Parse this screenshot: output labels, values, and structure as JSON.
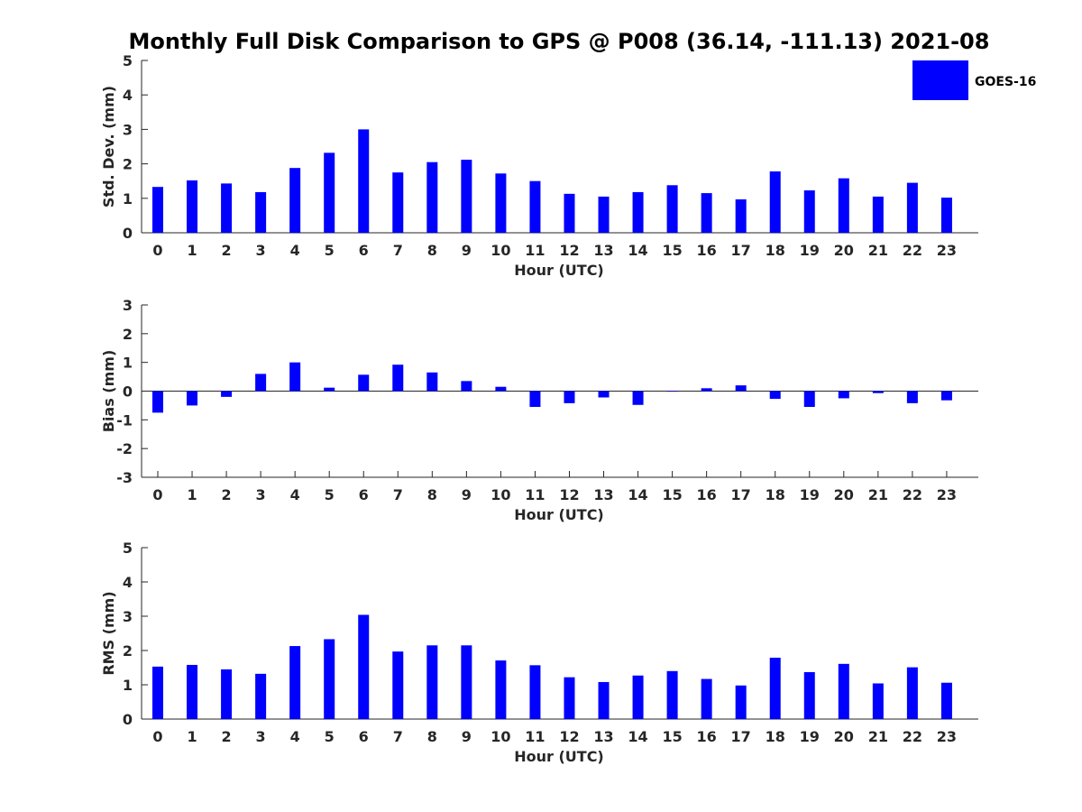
{
  "chart_data": {
    "title": "Monthly Full Disk Comparison to GPS @ P008 (36.14, -111.13) 2021-08",
    "type": "bar",
    "legend": {
      "entries": [
        "GOES-16"
      ],
      "placement": "top-right",
      "color": "#0000ff"
    },
    "panels": [
      {
        "id": "std",
        "type": "bar",
        "xlabel": "Hour (UTC)",
        "ylabel": "Std. Dev. (mm)",
        "ylim": [
          0,
          5
        ],
        "yticks": [
          "0",
          "1",
          "2",
          "3",
          "4",
          "5"
        ],
        "categories": [
          "0",
          "1",
          "2",
          "3",
          "4",
          "5",
          "6",
          "7",
          "8",
          "9",
          "10",
          "11",
          "12",
          "13",
          "14",
          "15",
          "16",
          "17",
          "18",
          "19",
          "20",
          "21",
          "22",
          "23"
        ],
        "series": [
          {
            "name": "GOES-16",
            "values": [
              1.33,
              1.52,
              1.43,
              1.18,
              1.88,
              2.32,
              3.0,
              1.75,
              2.05,
              2.12,
              1.72,
              1.5,
              1.13,
              1.05,
              1.18,
              1.38,
              1.15,
              0.97,
              1.78,
              1.23,
              1.58,
              1.05,
              1.45,
              1.02
            ]
          }
        ]
      },
      {
        "id": "bias",
        "type": "bar",
        "xlabel": "Hour (UTC)",
        "ylabel": "Bias (mm)",
        "ylim": [
          -3,
          3
        ],
        "yticks": [
          "-3",
          "-2",
          "-1",
          "0",
          "1",
          "2",
          "3"
        ],
        "categories": [
          "0",
          "1",
          "2",
          "3",
          "4",
          "5",
          "6",
          "7",
          "8",
          "9",
          "10",
          "11",
          "12",
          "13",
          "14",
          "15",
          "16",
          "17",
          "18",
          "19",
          "20",
          "21",
          "22",
          "23"
        ],
        "series": [
          {
            "name": "GOES-16",
            "values": [
              -0.75,
              -0.5,
              -0.2,
              0.6,
              1.0,
              0.12,
              0.57,
              0.92,
              0.65,
              0.35,
              0.15,
              -0.55,
              -0.42,
              -0.22,
              -0.48,
              -0.02,
              0.1,
              0.2,
              -0.27,
              -0.55,
              -0.25,
              -0.07,
              -0.42,
              -0.32
            ]
          }
        ]
      },
      {
        "id": "rms",
        "type": "bar",
        "xlabel": "Hour (UTC)",
        "ylabel": "RMS (mm)",
        "ylim": [
          0,
          5
        ],
        "yticks": [
          "0",
          "1",
          "2",
          "3",
          "4",
          "5"
        ],
        "categories": [
          "0",
          "1",
          "2",
          "3",
          "4",
          "5",
          "6",
          "7",
          "8",
          "9",
          "10",
          "11",
          "12",
          "13",
          "14",
          "15",
          "16",
          "17",
          "18",
          "19",
          "20",
          "21",
          "22",
          "23"
        ],
        "series": [
          {
            "name": "GOES-16",
            "values": [
              1.53,
              1.58,
              1.45,
              1.32,
              2.13,
              2.33,
              3.04,
              1.97,
              2.15,
              2.15,
              1.71,
              1.57,
              1.22,
              1.08,
              1.27,
              1.4,
              1.17,
              0.98,
              1.79,
              1.37,
              1.61,
              1.04,
              1.51,
              1.06
            ]
          }
        ]
      }
    ]
  }
}
